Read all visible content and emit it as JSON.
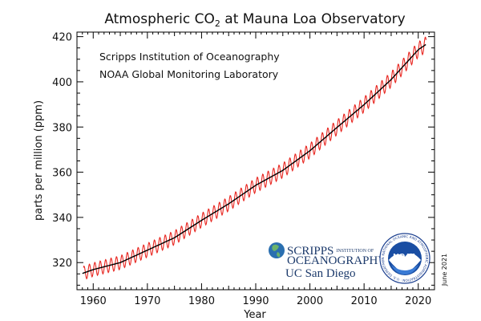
{
  "chart_data": {
    "type": "line",
    "title": "Atmospheric CO",
    "title_subscript": "2",
    "title_suffix": " at Mauna Loa Observatory",
    "xlabel": "Year",
    "ylabel": "parts per million (ppm)",
    "xlim": [
      1957,
      2023
    ],
    "ylim": [
      308,
      422
    ],
    "xticks": [
      1960,
      1970,
      1980,
      1990,
      2000,
      2010,
      2020
    ],
    "yticks": [
      320,
      340,
      360,
      380,
      400,
      420
    ],
    "grid": false,
    "sources": [
      "Scripps Institution of Oceanography",
      "NOAA Global Monitoring Laboratory"
    ],
    "date_stamp": "June 2021",
    "series": [
      {
        "color": "#e8251f",
        "style": "monthly mean (seasonal cycle)",
        "x_range": [
          1958.2,
          2021.45
        ],
        "seasonal_amplitude_ppm": 3
      },
      {
        "color": "#000000",
        "style": "seasonally adjusted trend",
        "x": [
          1958,
          1960,
          1965,
          1970,
          1975,
          1980,
          1985,
          1990,
          1995,
          2000,
          2005,
          2010,
          2015,
          2020,
          2021.4
        ],
        "y": [
          315.2,
          316.9,
          320.0,
          325.5,
          331.0,
          338.7,
          346.0,
          354.2,
          360.8,
          369.5,
          379.8,
          389.9,
          401.0,
          414.2,
          416.5
        ]
      }
    ]
  },
  "logos": {
    "scripps_line1": "SCRIPPS",
    "scripps_line1_small": "INSTITUTION OF",
    "scripps_line2": "OCEANOGRAPHY",
    "ucsd": "UC San Diego",
    "noaa": "NOAA",
    "noaa_ring_text": "NATIONAL OCEANIC AND ATMOSPHERIC ADMINISTRATION · U.S. DEPARTMENT OF COMMERCE"
  }
}
